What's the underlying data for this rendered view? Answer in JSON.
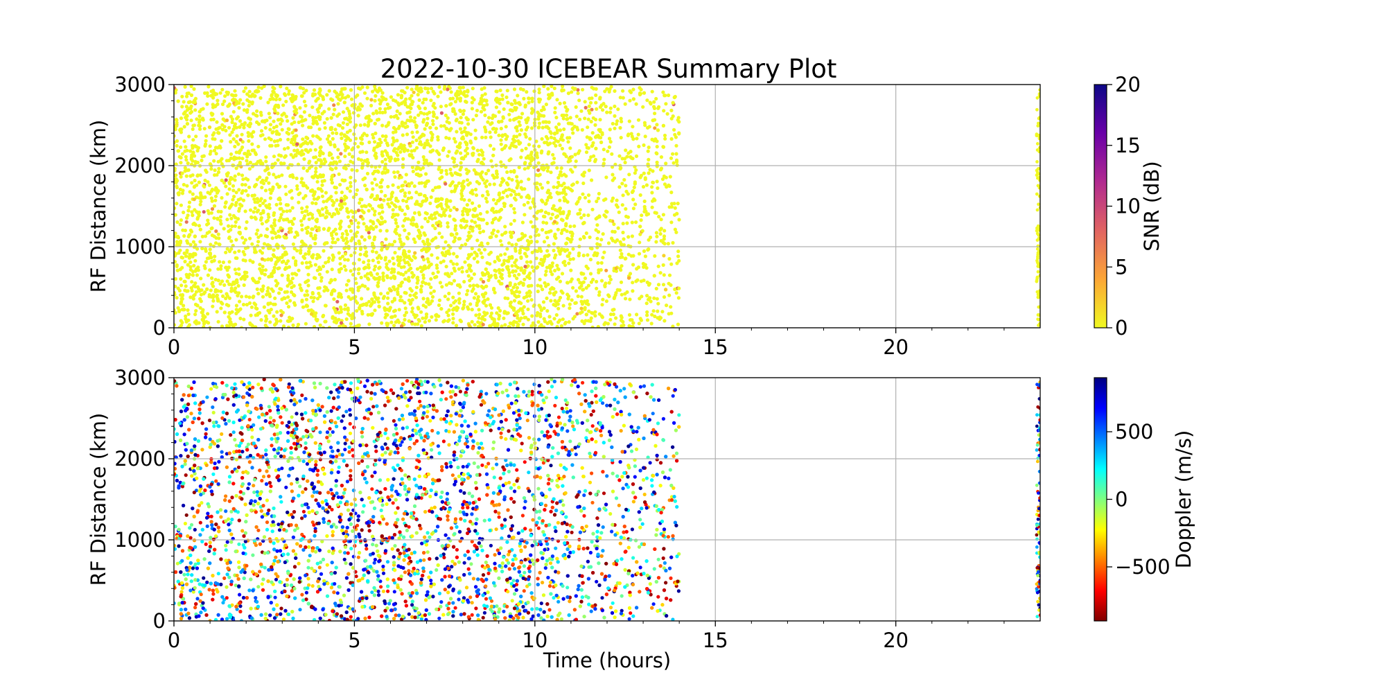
{
  "figure": {
    "title": "2022-10-30 ICEBEAR Summary Plot"
  },
  "chart_data": [
    {
      "type": "scatter",
      "panel": "top",
      "xlabel": "",
      "ylabel": "RF Distance (km)",
      "xlim": [
        0,
        24
      ],
      "ylim": [
        0,
        3000
      ],
      "xticks": [
        "0",
        "5",
        "10",
        "15",
        "20"
      ],
      "xtick_values": [
        0,
        5,
        10,
        15,
        20
      ],
      "yticks": [
        "0",
        "1000",
        "2000",
        "3000"
      ],
      "ytick_values": [
        0,
        1000,
        2000,
        3000
      ],
      "grid": true,
      "data_extent": {
        "x_start": 0,
        "x_end": 14.0,
        "late_strip_start": 23.9,
        "late_strip_end": 24.0,
        "y_max": 2980
      },
      "color_variable": "SNR",
      "dominant_value": 0,
      "colormap": "plasma_r",
      "colorbar": {
        "label": "SNR (dB)",
        "range": [
          0,
          20
        ],
        "ticks": [
          "0",
          "5",
          "10",
          "15",
          "20"
        ],
        "tick_values": [
          0,
          5,
          10,
          15,
          20
        ],
        "colors": [
          "#f0f921",
          "#fca636",
          "#e16462",
          "#b12a90",
          "#6a00a8",
          "#0d0887"
        ]
      }
    },
    {
      "type": "scatter",
      "panel": "bottom",
      "xlabel": "Time (hours)",
      "ylabel": "RF Distance (km)",
      "xlim": [
        0,
        24
      ],
      "ylim": [
        0,
        3000
      ],
      "xticks": [
        "0",
        "5",
        "10",
        "15",
        "20"
      ],
      "xtick_values": [
        0,
        5,
        10,
        15,
        20
      ],
      "yticks": [
        "0",
        "1000",
        "2000",
        "3000"
      ],
      "ytick_values": [
        0,
        1000,
        2000,
        3000
      ],
      "grid": true,
      "data_extent": {
        "x_start": 0,
        "x_end": 14.0,
        "late_strip_start": 23.9,
        "late_strip_end": 24.0,
        "y_max": 2980
      },
      "color_variable": "Doppler",
      "colormap": "jet_r",
      "colorbar": {
        "label": "Doppler (m/s)",
        "range": [
          -900,
          900
        ],
        "ticks": [
          "−500",
          "0",
          "500"
        ],
        "tick_values": [
          -500,
          0,
          500
        ],
        "colors": [
          "#800000",
          "#ff0000",
          "#ff8000",
          "#ffff00",
          "#80ff80",
          "#00ffff",
          "#0080ff",
          "#0000ff",
          "#000080"
        ]
      }
    }
  ]
}
